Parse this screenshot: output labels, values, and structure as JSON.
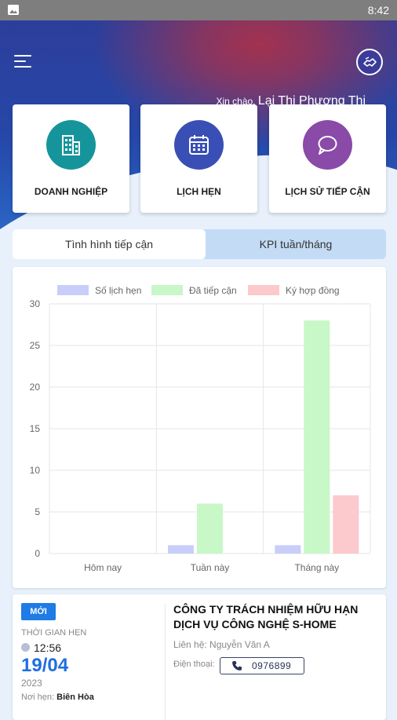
{
  "status_bar": {
    "time": "8:42",
    "icon": "image-notification-icon"
  },
  "header": {
    "menu_icon": "hamburger-menu-icon",
    "badge_icon": "handshake-badge-icon",
    "greeting_prefix": "Xin chào,",
    "user_name": "Lại Thị Phương Thi"
  },
  "quick_actions": [
    {
      "label": "DOANH NGHIỆP",
      "icon": "building-icon",
      "color": "#16949b"
    },
    {
      "label": "LỊCH HẸN",
      "icon": "calendar-icon",
      "color": "#3a4fb5"
    },
    {
      "label": "LỊCH SỬ TIẾP CẬN",
      "icon": "chat-bubble-icon",
      "color": "#8a4aa8"
    }
  ],
  "tabs": [
    {
      "label": "Tình hình tiếp cận",
      "active": true
    },
    {
      "label": "KPI tuần/tháng",
      "active": false
    }
  ],
  "chart_data": {
    "type": "bar",
    "categories": [
      "Hôm nay",
      "Tuần này",
      "Tháng này"
    ],
    "series": [
      {
        "name": "Số lịch hẹn",
        "values": [
          0,
          1,
          1
        ],
        "color": "#c9cdfa"
      },
      {
        "name": "Đã tiếp cận",
        "values": [
          0,
          6,
          28
        ],
        "color": "#c8f7c8"
      },
      {
        "name": "Ký hợp đồng",
        "values": [
          0,
          0,
          7
        ],
        "color": "#fcc9cc"
      }
    ],
    "yticks": [
      0,
      5,
      10,
      15,
      20,
      25,
      30
    ],
    "ylim": [
      0,
      30
    ],
    "grid": true,
    "legend": "top"
  },
  "appointment": {
    "badge": "MỚI",
    "time_label": "THỜI GIAN HẸN",
    "time": "12:56",
    "date": "19/04",
    "year": "2023",
    "place_label": "Nơi hẹn:",
    "place": "Biên Hòa",
    "company": "CÔNG TY TRÁCH NHIỆM HỮU HẠN DỊCH VỤ CÔNG NGHỆ S-HOME",
    "contact_label": "Liên hệ:",
    "contact": "Nguyễn Văn A",
    "phone_label": "Điện thoại:",
    "phone": "0976899"
  }
}
